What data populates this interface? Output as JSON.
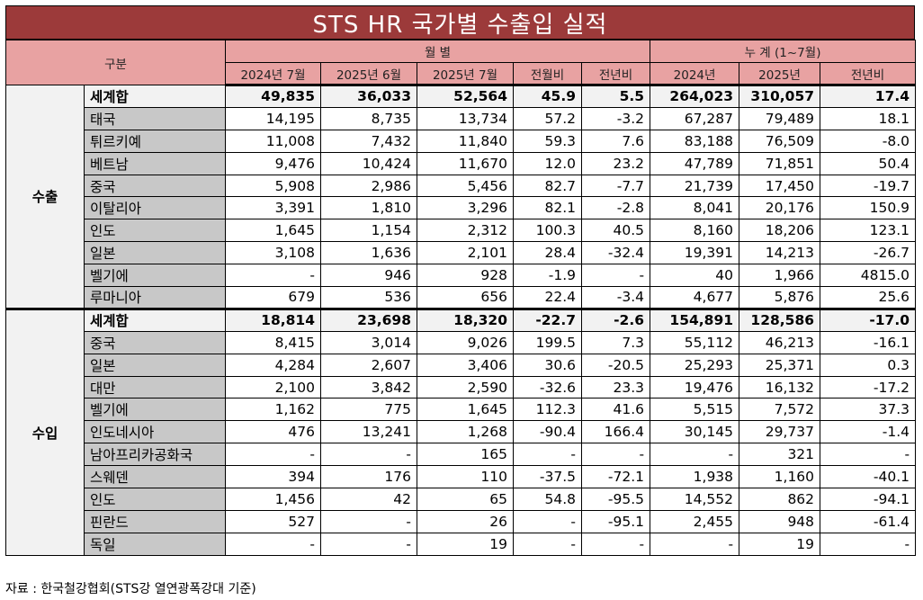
{
  "title": "STS HR 국가별 수출입 실적",
  "header": {
    "category": "구분",
    "monthly_group": "월    별",
    "cumulative_group": "누    계 (1~7월)",
    "columns": [
      "2024년 7월",
      "2025년 6월",
      "2025년 7월",
      "전월비",
      "전년비",
      "2024년",
      "2025년",
      "전년비"
    ]
  },
  "sections": [
    {
      "label": "수출",
      "rows": [
        {
          "name": "세계합",
          "total": true,
          "values": [
            "49,835",
            "36,033",
            "52,564",
            "45.9",
            "5.5",
            "264,023",
            "310,057",
            "17.4"
          ]
        },
        {
          "name": "태국",
          "values": [
            "14,195",
            "8,735",
            "13,734",
            "57.2",
            "-3.2",
            "67,287",
            "79,489",
            "18.1"
          ]
        },
        {
          "name": "튀르키예",
          "values": [
            "11,008",
            "7,432",
            "11,840",
            "59.3",
            "7.6",
            "83,188",
            "76,509",
            "-8.0"
          ]
        },
        {
          "name": "베트남",
          "values": [
            "9,476",
            "10,424",
            "11,670",
            "12.0",
            "23.2",
            "47,789",
            "71,851",
            "50.4"
          ]
        },
        {
          "name": "중국",
          "values": [
            "5,908",
            "2,986",
            "5,456",
            "82.7",
            "-7.7",
            "21,739",
            "17,450",
            "-19.7"
          ]
        },
        {
          "name": "이탈리아",
          "values": [
            "3,391",
            "1,810",
            "3,296",
            "82.1",
            "-2.8",
            "8,041",
            "20,176",
            "150.9"
          ]
        },
        {
          "name": "인도",
          "values": [
            "1,645",
            "1,154",
            "2,312",
            "100.3",
            "40.5",
            "8,160",
            "18,206",
            "123.1"
          ]
        },
        {
          "name": "일본",
          "values": [
            "3,108",
            "1,636",
            "2,101",
            "28.4",
            "-32.4",
            "19,391",
            "14,213",
            "-26.7"
          ]
        },
        {
          "name": "벨기에",
          "values": [
            "-",
            "946",
            "928",
            "-1.9",
            "-",
            "40",
            "1,966",
            "4815.0"
          ]
        },
        {
          "name": "루마니아",
          "values": [
            "679",
            "536",
            "656",
            "22.4",
            "-3.4",
            "4,677",
            "5,876",
            "25.6"
          ]
        }
      ]
    },
    {
      "label": "수입",
      "rows": [
        {
          "name": "세계합",
          "total": true,
          "values": [
            "18,814",
            "23,698",
            "18,320",
            "-22.7",
            "-2.6",
            "154,891",
            "128,586",
            "-17.0"
          ]
        },
        {
          "name": "중국",
          "values": [
            "8,415",
            "3,014",
            "9,026",
            "199.5",
            "7.3",
            "55,112",
            "46,213",
            "-16.1"
          ]
        },
        {
          "name": "일본",
          "values": [
            "4,284",
            "2,607",
            "3,406",
            "30.6",
            "-20.5",
            "25,293",
            "25,371",
            "0.3"
          ]
        },
        {
          "name": "대만",
          "values": [
            "2,100",
            "3,842",
            "2,590",
            "-32.6",
            "23.3",
            "19,476",
            "16,132",
            "-17.2"
          ]
        },
        {
          "name": "벨기에",
          "values": [
            "1,162",
            "775",
            "1,645",
            "112.3",
            "41.6",
            "5,515",
            "7,572",
            "37.3"
          ]
        },
        {
          "name": "인도네시아",
          "values": [
            "476",
            "13,241",
            "1,268",
            "-90.4",
            "166.4",
            "30,145",
            "29,737",
            "-1.4"
          ]
        },
        {
          "name": "남아프리카공화국",
          "values": [
            "-",
            "-",
            "165",
            "-",
            "-",
            "-",
            "321",
            "-"
          ]
        },
        {
          "name": "스웨덴",
          "values": [
            "394",
            "176",
            "110",
            "-37.5",
            "-72.1",
            "1,938",
            "1,160",
            "-40.1"
          ]
        },
        {
          "name": "인도",
          "values": [
            "1,456",
            "42",
            "65",
            "54.8",
            "-95.5",
            "14,552",
            "862",
            "-94.1"
          ]
        },
        {
          "name": "핀란드",
          "values": [
            "527",
            "-",
            "26",
            "-",
            "-95.1",
            "2,455",
            "948",
            "-61.4"
          ]
        },
        {
          "name": "독일",
          "values": [
            "-",
            "-",
            "19",
            "-",
            "-",
            "-",
            "19",
            "-"
          ]
        }
      ]
    }
  ],
  "footer": "자료 : 한국철강협회(STS강 열연광폭강대 기준)"
}
